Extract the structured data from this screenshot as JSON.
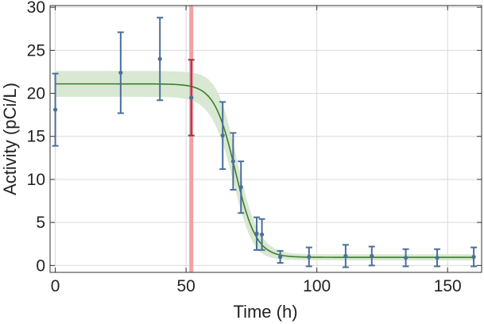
{
  "chart_data": {
    "type": "scatter",
    "title": "",
    "xlabel": "Time (h)",
    "ylabel": "Activity (pCi/L)",
    "xlim": [
      -2,
      163
    ],
    "ylim": [
      -0.8,
      30.2
    ],
    "xticks": [
      0,
      50,
      100,
      150
    ],
    "yticks": [
      0,
      5,
      10,
      15,
      20,
      25,
      30
    ],
    "grid": true,
    "colors": {
      "points": "#4a6f9a",
      "fit_line": "#3d7d2e",
      "band": "#d8e8d2",
      "marker_line": "#f2a0a0",
      "highlight_errorbar": "#9c2f50",
      "frame": "#333333",
      "grid": "#d9d9d9"
    },
    "series": [
      {
        "kind": "errorbar",
        "x": [
          0,
          25,
          40,
          52,
          64,
          68,
          71,
          77,
          79,
          86,
          97,
          111,
          121,
          134,
          146,
          160
        ],
        "y": [
          18.1,
          22.4,
          24.0,
          19.5,
          15.1,
          12.1,
          9.1,
          3.7,
          3.6,
          1.0,
          1.0,
          1.1,
          1.1,
          0.9,
          0.9,
          1.0
        ],
        "yerr": [
          4.2,
          4.7,
          4.8,
          4.4,
          3.9,
          3.3,
          3.0,
          1.9,
          1.8,
          0.7,
          1.1,
          1.3,
          1.1,
          1.0,
          1.0,
          1.1
        ]
      },
      {
        "kind": "fit",
        "model": "logistic",
        "top": 21.1,
        "bottom": 0.95,
        "midpoint": 68.8,
        "slope": 4.0,
        "band_halfwidth_top": 1.5,
        "band_halfwidth_mid": 2.3,
        "band_halfwidth_bottom": 0.35
      }
    ],
    "vertical_line_x": 52,
    "highlighted_point_index": 3
  }
}
